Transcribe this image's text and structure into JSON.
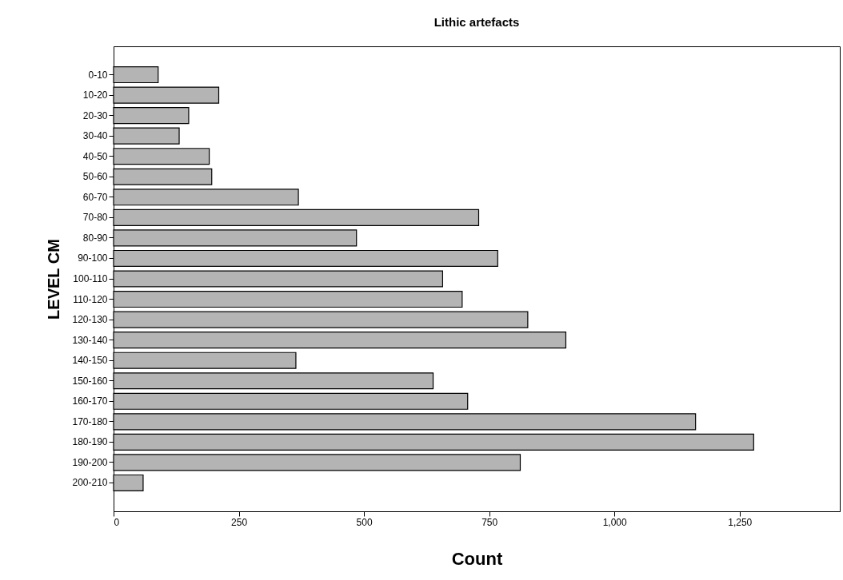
{
  "chart_data": {
    "type": "bar",
    "orientation": "horizontal",
    "title": "Lithic artefacts",
    "xlabel": "Count",
    "ylabel": "LEVEL CM",
    "categories": [
      "0-10",
      "10-20",
      "20-30",
      "30-40",
      "40-50",
      "50-60",
      "60-70",
      "70-80",
      "80-90",
      "90-100",
      "100-110",
      "110-120",
      "120-130",
      "130-140",
      "140-150",
      "150-160",
      "160-170",
      "170-180",
      "180-190",
      "190-200",
      "200-210"
    ],
    "values": [
      89,
      210,
      150,
      131,
      191,
      196,
      369,
      729,
      485,
      767,
      657,
      696,
      827,
      903,
      364,
      638,
      707,
      1162,
      1278,
      812,
      59
    ],
    "color": "#b4b4b4",
    "xlim": [
      0,
      1450
    ],
    "xticks": [
      0,
      250,
      500,
      750,
      {
        "value": 1000,
        "label": "1,000"
      },
      {
        "value": 1250,
        "label": "1,250"
      }
    ],
    "grid": false
  }
}
